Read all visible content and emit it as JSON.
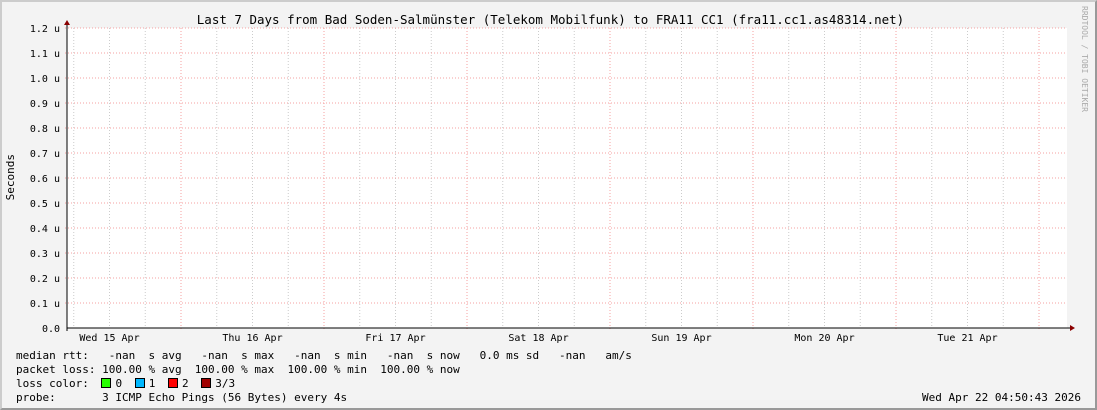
{
  "chart_data": {
    "type": "line",
    "title": "Last 7 Days from Bad Soden-Salmünster (Telekom Mobilfunk) to FRA11 CC1 (fra11.cc1.as48314.net)",
    "ylabel": "Seconds",
    "xlabel": "",
    "ylim": [
      0,
      1.2
    ],
    "y_unit_suffix": "u",
    "y_ticks": [
      "0.0",
      "0.1 u",
      "0.2 u",
      "0.3 u",
      "0.4 u",
      "0.5 u",
      "0.6 u",
      "0.7 u",
      "0.8 u",
      "0.9 u",
      "1.0 u",
      "1.1 u",
      "1.2 u"
    ],
    "x_ticks": [
      "Wed 15 Apr",
      "Thu 16 Apr",
      "Fri 17 Apr",
      "Sat 18 Apr",
      "Sun 19 Apr",
      "Mon 20 Apr",
      "Tue 21 Apr"
    ],
    "grid": true,
    "series": [],
    "colors": {
      "grid_major": "#f4a0a0",
      "grid_minor": "#cccccc",
      "axis_arrow": "#8b0000"
    }
  },
  "watermark": "RRDTOOL / TOBI OETIKER",
  "legend": {
    "median_rtt": "median rtt:   -nan  s avg   -nan  s max   -nan  s min   -nan  s now   0.0 ms sd   -nan   am/s",
    "packet_loss": "packet loss: 100.00 % avg  100.00 % max  100.00 % min  100.00 % now",
    "loss_color_label": "loss color:",
    "loss_colors": [
      {
        "label": "0",
        "color": "#26ff00"
      },
      {
        "label": "1",
        "color": "#00b8ff"
      },
      {
        "label": "2",
        "color": "#ff0000"
      },
      {
        "label": "3/3",
        "color": "#a00000"
      }
    ],
    "probe": "probe:       3 ICMP Echo Pings (56 Bytes) every 4s",
    "timestamp": "Wed Apr 22 04:50:43 2026"
  }
}
